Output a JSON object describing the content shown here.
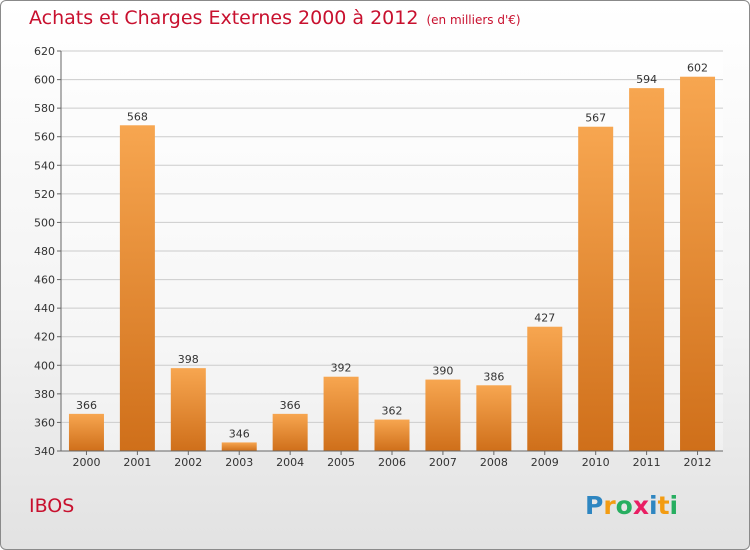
{
  "title": "Achats et Charges Externes 2000 à 2012",
  "subtitle": "(en milliers d'€)",
  "commune": "IBOS",
  "logo": {
    "text": "Proxiti",
    "letters": [
      {
        "ch": "P",
        "color": "#2e86c1"
      },
      {
        "ch": "r",
        "color": "#f39c12"
      },
      {
        "ch": "o",
        "color": "#27ae60"
      },
      {
        "ch": "x",
        "color": "#e91e63"
      },
      {
        "ch": "i",
        "color": "#2e86c1"
      },
      {
        "ch": "t",
        "color": "#f39c12"
      },
      {
        "ch": "i",
        "color": "#27ae60"
      }
    ]
  },
  "colors": {
    "accent_text": "#c8102e",
    "bar_light": "#f7a650",
    "bar_dark": "#cf6f1a",
    "grid": "#cccccc"
  },
  "chart_data": {
    "type": "bar",
    "title": "Achats et Charges Externes 2000 à 2012",
    "subtitle": "(en milliers d'€)",
    "categories": [
      "2000",
      "2001",
      "2002",
      "2003",
      "2004",
      "2005",
      "2006",
      "2007",
      "2008",
      "2009",
      "2010",
      "2011",
      "2012"
    ],
    "values": [
      366,
      568,
      398,
      346,
      366,
      392,
      362,
      390,
      386,
      427,
      567,
      594,
      602
    ],
    "ylim": [
      340,
      620
    ],
    "yticks": [
      340,
      360,
      380,
      400,
      420,
      440,
      460,
      480,
      500,
      520,
      540,
      560,
      580,
      600,
      620
    ],
    "grid": true,
    "xlabel": "",
    "ylabel": ""
  }
}
